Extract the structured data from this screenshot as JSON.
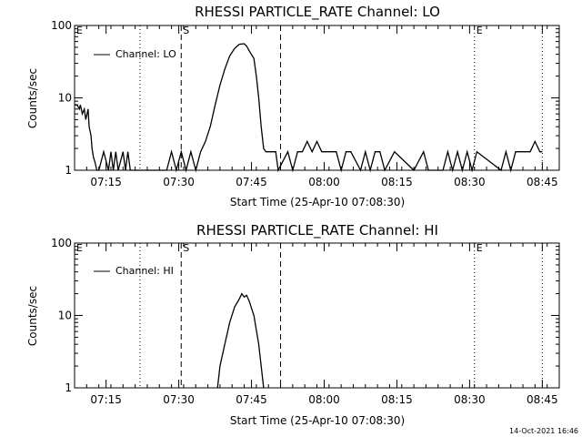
{
  "footer": {
    "timestamp": "14-Oct-2021 16:46"
  },
  "chart_data": [
    {
      "type": "line",
      "title": "RHESSI PARTICLE_RATE Channel: LO",
      "ylabel": "Counts/sec",
      "xlabel": "Start Time (25-Apr-10 07:08:30)",
      "yscale": "log",
      "ylim": [
        1,
        100
      ],
      "y_tick_labels": [
        "1",
        "10",
        "100"
      ],
      "xlim_minutes": [
        0,
        100
      ],
      "x_tick_labels": [
        "07:15",
        "07:30",
        "07:45",
        "08:00",
        "08:15",
        "08:30",
        "08:45"
      ],
      "x_ticks_minutes": [
        6.5,
        21.5,
        36.5,
        51.5,
        66.5,
        81.5,
        96.5
      ],
      "legend": {
        "label": "Channel: LO",
        "position": "top-left"
      },
      "markers": [
        {
          "label": "E",
          "minute": 0,
          "style": "solid"
        },
        {
          "label": "",
          "minute": 13.5,
          "style": "dotted"
        },
        {
          "label": "S",
          "minute": 22,
          "style": "dashed"
        },
        {
          "label": "",
          "minute": 42.5,
          "style": "dashed"
        },
        {
          "label": "E",
          "minute": 82.5,
          "style": "dotted"
        },
        {
          "label": "",
          "minute": 96.5,
          "style": "dotted"
        }
      ],
      "series": [
        {
          "x": [
            0,
            0.5,
            1,
            1.2,
            1.6,
            2,
            2.3,
            2.8,
            3,
            3.4,
            3.6,
            3.9,
            4.2,
            4.6,
            5,
            6,
            7,
            7.5,
            8,
            8.5,
            9,
            10,
            10.5,
            11,
            11.5,
            12,
            15,
            19,
            20,
            21,
            22,
            23,
            24,
            25,
            26,
            27,
            28,
            29,
            30,
            31,
            32,
            33,
            34,
            35,
            35.5,
            36,
            37,
            37.5,
            38,
            38.5,
            39,
            39.5,
            40,
            40.5,
            41,
            41.5,
            42,
            44,
            45,
            46,
            47,
            48,
            49,
            50,
            51,
            52,
            53,
            54,
            55,
            56,
            57,
            59,
            60,
            61,
            62,
            63,
            64,
            66,
            70,
            72,
            73,
            76,
            77,
            78,
            79,
            80,
            81,
            82,
            83,
            88,
            89,
            90,
            91,
            92,
            93,
            94,
            95,
            96,
            96.5
          ],
          "y": [
            8,
            8,
            7,
            8,
            6,
            7,
            5,
            7,
            4,
            3,
            2,
            1.5,
            1.3,
            1,
            1,
            1.8,
            1,
            1.8,
            1,
            1.8,
            1,
            1.8,
            1,
            1.8,
            1,
            1,
            1,
            1,
            1.8,
            1,
            1.8,
            1,
            1.8,
            1,
            1.8,
            2.5,
            4,
            8,
            15,
            25,
            38,
            48,
            55,
            56,
            52,
            45,
            35,
            20,
            10,
            4,
            2,
            1.8,
            1.8,
            1.8,
            1.8,
            1.8,
            1,
            1.8,
            1,
            1.8,
            1.8,
            2.5,
            1.8,
            2.5,
            1.8,
            1.8,
            1.8,
            1.8,
            1,
            1.8,
            1.8,
            1,
            1.8,
            1,
            1.8,
            1.8,
            1,
            1.8,
            1,
            1.8,
            1,
            1,
            1.8,
            1,
            1.8,
            1,
            1.8,
            1,
            1.8,
            1,
            1.8,
            1,
            1.8,
            1.8,
            1.8,
            1.8,
            2.5,
            1.8,
            1.8
          ]
        }
      ]
    },
    {
      "type": "line",
      "title": "RHESSI PARTICLE_RATE Channel: HI",
      "ylabel": "Counts/sec",
      "xlabel": "Start Time (25-Apr-10 07:08:30)",
      "yscale": "log",
      "ylim": [
        1,
        100
      ],
      "y_tick_labels": [
        "1",
        "10",
        "100"
      ],
      "xlim_minutes": [
        0,
        100
      ],
      "x_tick_labels": [
        "07:15",
        "07:30",
        "07:45",
        "08:00",
        "08:15",
        "08:30",
        "08:45"
      ],
      "x_ticks_minutes": [
        6.5,
        21.5,
        36.5,
        51.5,
        66.5,
        81.5,
        96.5
      ],
      "legend": {
        "label": "Channel: HI",
        "position": "top-left"
      },
      "markers": [
        {
          "label": "E",
          "minute": 0,
          "style": "solid"
        },
        {
          "label": "",
          "minute": 13.5,
          "style": "dotted"
        },
        {
          "label": "S",
          "minute": 22,
          "style": "dashed"
        },
        {
          "label": "",
          "minute": 42.5,
          "style": "dashed"
        },
        {
          "label": "E",
          "minute": 82.5,
          "style": "dotted"
        },
        {
          "label": "",
          "minute": 96.5,
          "style": "dotted"
        }
      ],
      "series": [
        {
          "x": [
            29.5,
            30,
            31,
            32,
            33,
            34,
            34.5,
            35,
            35.5,
            36,
            37,
            38,
            38.5,
            39
          ],
          "y": [
            1,
            2,
            4,
            8,
            13,
            17,
            20,
            18,
            19,
            16,
            10,
            4,
            2,
            1
          ]
        }
      ]
    }
  ]
}
